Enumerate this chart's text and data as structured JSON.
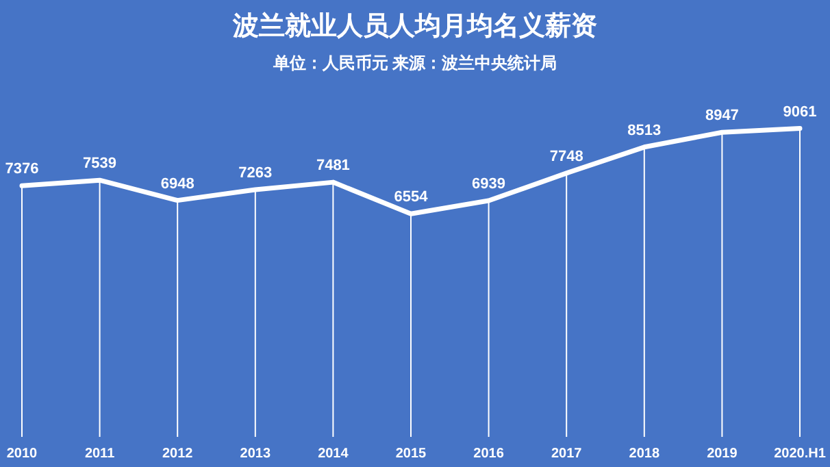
{
  "chart_data": {
    "type": "line",
    "title": "波兰就业人员人均月均名义薪资",
    "subtitle": "单位：人民币元 来源：波兰中央统计局",
    "categories": [
      "2010",
      "2011",
      "2012",
      "2013",
      "2014",
      "2015",
      "2016",
      "2017",
      "2018",
      "2019",
      "2020.H1"
    ],
    "series": [
      {
        "color": "#ffffff",
        "values": [
          7376,
          7539,
          6948,
          7263,
          7481,
          6554,
          6939,
          7748,
          8513,
          8947,
          9061
        ]
      }
    ],
    "data_labels": true,
    "marker": "none",
    "line_style": "solid",
    "grid": "x"
  }
}
